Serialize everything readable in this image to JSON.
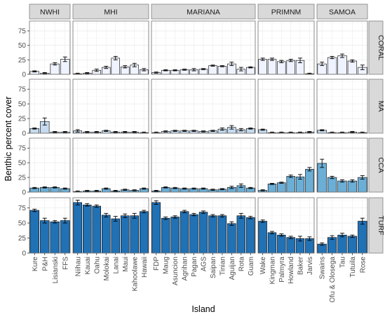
{
  "chart_data": {
    "type": "bar",
    "xlabel": "Island",
    "ylabel": "Benthic percent cover",
    "ylim": [
      0,
      92
    ],
    "yticks": [
      0,
      25,
      50,
      75
    ],
    "grid": true,
    "error_bars": true,
    "colors": {
      "CORAL": "#eff3ff",
      "MA": "#c6dbef",
      "CCA": "#6baed6",
      "TURF": "#2171b5",
      "strip_bg": "#d9d9d9",
      "panel_border": "#7f7f7f",
      "grid": "#ebebeb"
    },
    "regions": [
      {
        "name": "NWHI",
        "islands": [
          "Kure",
          "P&H",
          "Lisianski",
          "FFS"
        ]
      },
      {
        "name": "MHI",
        "islands": [
          "Niihau",
          "Kauai",
          "Oahu",
          "Molokai",
          "Lanai",
          "Maui",
          "Kahoolawe",
          "Hawaii"
        ]
      },
      {
        "name": "MARIANA",
        "islands": [
          "FDP",
          "Maug",
          "Asuncion",
          "Agrihan",
          "Pagan",
          "AGS",
          "Saipan",
          "Tinian",
          "Aguijan",
          "Rota",
          "Guam"
        ]
      },
      {
        "name": "PRIMNM",
        "islands": [
          "Wake",
          "Kingman",
          "Palmyra",
          "Howland",
          "Baker",
          "Jarvis"
        ]
      },
      {
        "name": "SAMOA",
        "islands": [
          "Swains",
          "Ofu & Olosega",
          "Tau",
          "Tutuila",
          "Rose"
        ]
      }
    ],
    "categories_rows": [
      "CORAL",
      "MA",
      "CCA",
      "TURF"
    ],
    "values": {
      "CORAL": {
        "NWHI": [
          5,
          2,
          18,
          26
        ],
        "MHI": [
          1,
          2,
          7,
          12,
          28,
          13,
          16,
          8
        ],
        "MARIANA": [
          3,
          7,
          7,
          8,
          8,
          9,
          15,
          14,
          18,
          9,
          12
        ],
        "PRIMNM": [
          26,
          26,
          22,
          24,
          24,
          1
        ],
        "SAMOA": [
          18,
          29,
          32,
          23,
          12
        ]
      },
      "MA": {
        "NWHI": [
          8,
          20,
          2,
          2
        ],
        "MHI": [
          4,
          2,
          2,
          4,
          2,
          2,
          2,
          1
        ],
        "MARIANA": [
          1,
          3,
          4,
          4,
          4,
          3,
          4,
          7,
          10,
          6,
          8
        ],
        "PRIMNM": [
          6,
          1,
          1,
          1,
          1,
          2
        ],
        "SAMOA": [
          5,
          1,
          1,
          2,
          1
        ]
      },
      "CCA": {
        "NWHI": [
          7,
          8,
          8,
          6
        ],
        "MHI": [
          1,
          2,
          2,
          6,
          2,
          4,
          3,
          6
        ],
        "MARIANA": [
          2,
          8,
          7,
          6,
          6,
          6,
          4,
          5,
          8,
          11,
          7
        ],
        "PRIMNM": [
          3,
          14,
          16,
          27,
          26,
          39
        ],
        "SAMOA": [
          49,
          25,
          19,
          19,
          25
        ]
      },
      "TURF": {
        "NWHI": [
          71,
          54,
          52,
          54
        ],
        "MHI": [
          84,
          80,
          78,
          63,
          57,
          62,
          62,
          69
        ],
        "MARIANA": [
          84,
          58,
          60,
          69,
          64,
          68,
          62,
          62,
          49,
          62,
          59
        ],
        "PRIMNM": [
          53,
          34,
          30,
          26,
          24,
          24
        ],
        "SAMOA": [
          15,
          26,
          30,
          28,
          53
        ]
      }
    },
    "errors": {
      "CORAL": {
        "NWHI": [
          1,
          1,
          2,
          4
        ],
        "MHI": [
          1,
          1,
          2,
          2,
          3,
          2,
          3,
          2
        ],
        "MARIANA": [
          1,
          1,
          1,
          1,
          2,
          1,
          1,
          1,
          3,
          3,
          1
        ],
        "PRIMNM": [
          2,
          2,
          2,
          2,
          4,
          1
        ],
        "SAMOA": [
          3,
          2,
          3,
          2,
          4
        ]
      },
      "MA": {
        "NWHI": [
          1,
          6,
          1,
          1
        ],
        "MHI": [
          2,
          1,
          1,
          1,
          1,
          1,
          1,
          1
        ],
        "MARIANA": [
          1,
          1,
          1,
          1,
          1,
          1,
          1,
          2,
          3,
          2,
          1
        ],
        "PRIMNM": [
          1,
          1,
          1,
          1,
          1,
          1
        ],
        "SAMOA": [
          1,
          1,
          1,
          1,
          1
        ]
      },
      "CCA": {
        "NWHI": [
          1,
          1,
          1,
          1
        ],
        "MHI": [
          1,
          1,
          1,
          1,
          1,
          1,
          1,
          1
        ],
        "MARIANA": [
          1,
          1,
          1,
          1,
          1,
          1,
          1,
          1,
          2,
          3,
          1
        ],
        "PRIMNM": [
          1,
          1,
          1,
          2,
          4,
          3
        ],
        "SAMOA": [
          7,
          2,
          2,
          2,
          3
        ]
      },
      "TURF": {
        "NWHI": [
          2,
          4,
          2,
          4
        ],
        "MHI": [
          4,
          2,
          2,
          3,
          4,
          3,
          4,
          2
        ],
        "MARIANA": [
          3,
          2,
          2,
          2,
          2,
          2,
          2,
          2,
          3,
          4,
          2
        ],
        "PRIMNM": [
          2,
          2,
          2,
          2,
          4,
          3
        ],
        "SAMOA": [
          2,
          3,
          3,
          2,
          5
        ]
      }
    }
  }
}
